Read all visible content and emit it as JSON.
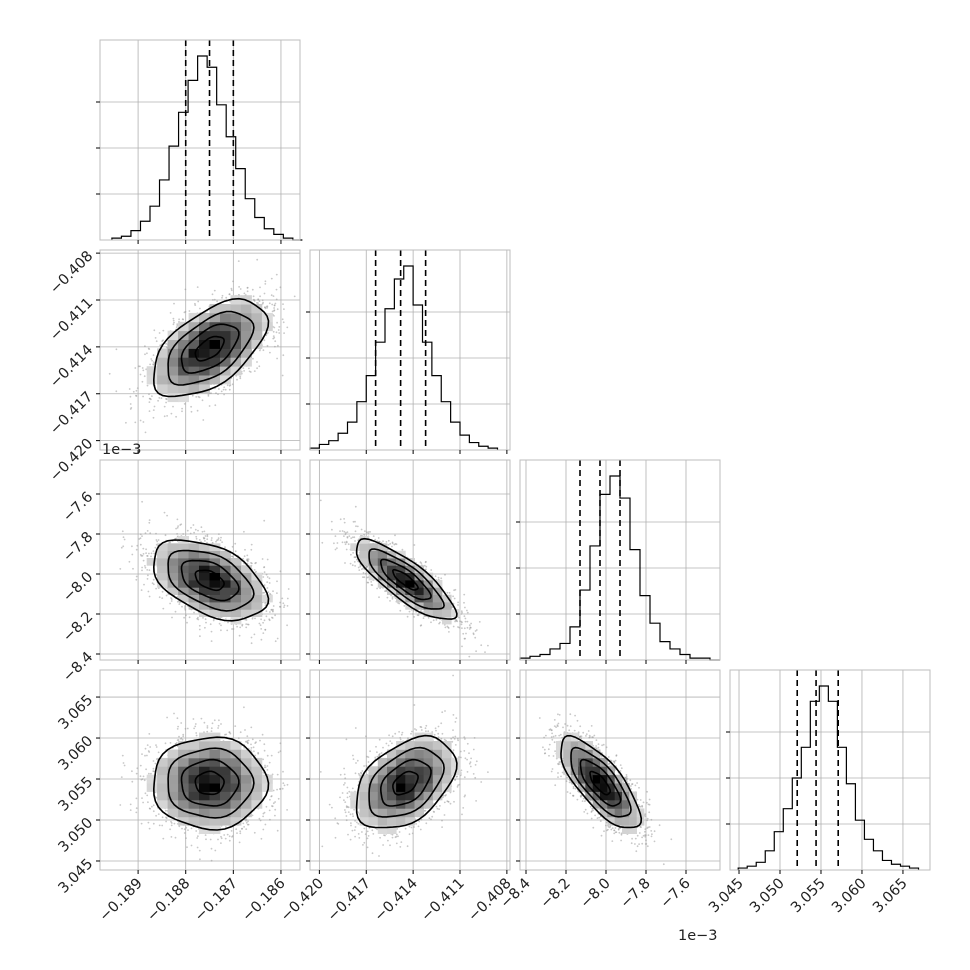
{
  "colors": {
    "background": "#ffffff",
    "grid": "#b0b0b0",
    "frame": "#bdbdbd",
    "ink": "#000000",
    "text": "#222222",
    "scatter": "#9a9a9a"
  },
  "chart_data": {
    "type": "corner",
    "grid": true,
    "params": [
      {
        "range": [
          -0.1898,
          -0.1856
        ],
        "ticks": [
          -0.189,
          -0.188,
          -0.187,
          -0.186
        ],
        "tick_labels": [
          "−0.189",
          "−0.188",
          "−0.187",
          "−0.186"
        ],
        "offset_text": ""
      },
      {
        "range": [
          -0.4206,
          -0.4078
        ],
        "ticks": [
          -0.42,
          -0.417,
          -0.414,
          -0.411,
          -0.408
        ],
        "tick_labels": [
          "−0.420",
          "−0.417",
          "−0.414",
          "−0.411",
          "−0.408"
        ],
        "offset_text": ""
      },
      {
        "range": [
          -8.43,
          -7.43
        ],
        "ticks": [
          -8.4,
          -8.2,
          -8.0,
          -7.8,
          -7.6
        ],
        "tick_labels": [
          "−8.4",
          "−8.2",
          "−8.0",
          "−7.8",
          "−7.6"
        ],
        "offset_text": "1e−3"
      },
      {
        "range": [
          3.0439,
          3.0683
        ],
        "ticks": [
          3.045,
          3.05,
          3.055,
          3.06,
          3.065
        ],
        "tick_labels": [
          "3.045",
          "3.050",
          "3.055",
          "3.060",
          "3.065"
        ],
        "offset_text": "1e−3"
      }
    ],
    "marginals": [
      {
        "edges_start": -0.18955,
        "bin_width": 0.0002,
        "counts": [
          1,
          2,
          5,
          10,
          18,
          32,
          50,
          68,
          85,
          98,
          92,
          72,
          55,
          38,
          22,
          12,
          6,
          3,
          1,
          0
        ],
        "quantiles": [
          -0.188,
          -0.1875,
          -0.187
        ]
      },
      {
        "edges_start": -0.4206,
        "bin_width": 0.0006,
        "counts": [
          1,
          3,
          5,
          9,
          15,
          26,
          40,
          58,
          76,
          92,
          99,
          78,
          58,
          40,
          26,
          15,
          8,
          4,
          2,
          1
        ],
        "quantiles": [
          -0.4164,
          -0.4148,
          -0.4132
        ]
      },
      {
        "edges_start": -8.43,
        "bin_width": 0.05,
        "counts": [
          1,
          2,
          3,
          6,
          9,
          18,
          38,
          62,
          90,
          100,
          88,
          60,
          35,
          20,
          10,
          6,
          3,
          1,
          1,
          0
        ],
        "quantiles": [
          -8.13,
          -8.03,
          -7.93
        ]
      },
      {
        "edges_start": 3.0449,
        "bin_width": 0.0011,
        "counts": [
          1,
          2,
          4,
          10,
          20,
          32,
          48,
          64,
          88,
          96,
          88,
          64,
          45,
          26,
          16,
          10,
          5,
          3,
          2,
          1
        ],
        "quantiles": [
          3.0521,
          3.0544,
          3.0571
        ]
      }
    ],
    "pairs": [
      {
        "row": 1,
        "col": 0,
        "mean": [
          -0.1875,
          -0.4141
        ],
        "sd": [
          0.0006,
          0.00155
        ],
        "rho": 0.55
      },
      {
        "row": 2,
        "col": 0,
        "mean": [
          -0.1875,
          -8.03
        ],
        "sd": [
          0.0006,
          0.1
        ],
        "rho": -0.45
      },
      {
        "row": 2,
        "col": 1,
        "mean": [
          -0.4145,
          -8.03
        ],
        "sd": [
          0.0016,
          0.1
        ],
        "rho": -0.82
      },
      {
        "row": 3,
        "col": 0,
        "mean": [
          -0.1875,
          3.0545
        ],
        "sd": [
          0.0006,
          0.0028
        ],
        "rho": 0.0
      },
      {
        "row": 3,
        "col": 1,
        "mean": [
          -0.4145,
          3.0545
        ],
        "sd": [
          0.0016,
          0.0028
        ],
        "rho": 0.42
      },
      {
        "row": 3,
        "col": 2,
        "mean": [
          -8.03,
          3.0545
        ],
        "sd": [
          0.1,
          0.0028
        ],
        "rho": -0.75
      }
    ]
  }
}
